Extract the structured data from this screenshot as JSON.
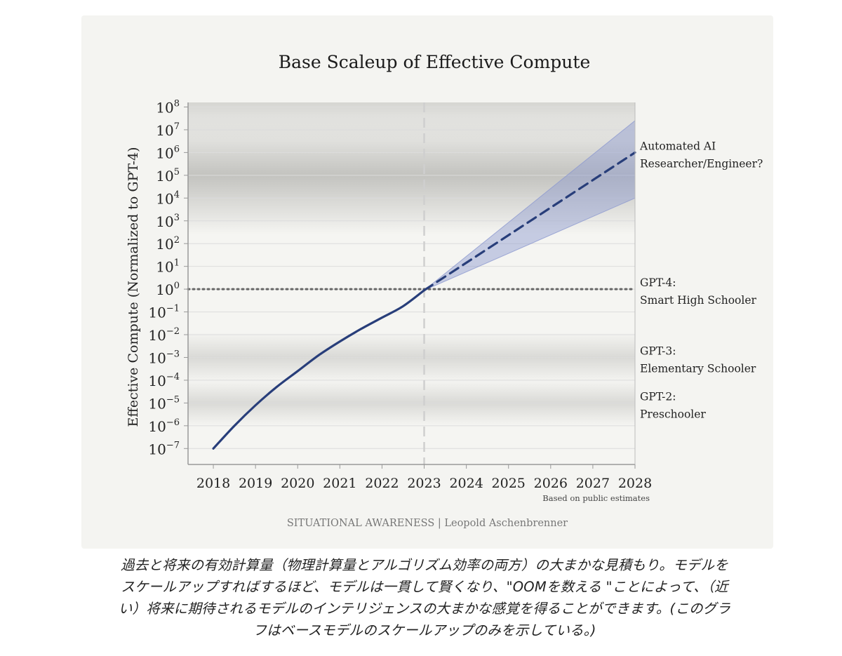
{
  "chart_data": {
    "type": "line",
    "title": "Base Scaleup of Effective Compute",
    "ylabel": "Effective Compute (Normalized to GPT-4)",
    "xlabel": "",
    "x_ticks": [
      "2018",
      "2019",
      "2020",
      "2021",
      "2022",
      "2023",
      "2024",
      "2025",
      "2026",
      "2027",
      "2028"
    ],
    "y_scale": "log10",
    "y_ticks": [
      {
        "base": "10",
        "exp": "8",
        "value": 8
      },
      {
        "base": "10",
        "exp": "7",
        "value": 7
      },
      {
        "base": "10",
        "exp": "6",
        "value": 6
      },
      {
        "base": "10",
        "exp": "5",
        "value": 5
      },
      {
        "base": "10",
        "exp": "4",
        "value": 4
      },
      {
        "base": "10",
        "exp": "3",
        "value": 3
      },
      {
        "base": "10",
        "exp": "2",
        "value": 2
      },
      {
        "base": "10",
        "exp": "1",
        "value": 1
      },
      {
        "base": "10",
        "exp": "0",
        "value": 0
      },
      {
        "base": "10",
        "exp": "−1",
        "value": -1
      },
      {
        "base": "10",
        "exp": "−2",
        "value": -2
      },
      {
        "base": "10",
        "exp": "−3",
        "value": -3
      },
      {
        "base": "10",
        "exp": "−4",
        "value": -4
      },
      {
        "base": "10",
        "exp": "−5",
        "value": -5
      },
      {
        "base": "10",
        "exp": "−6",
        "value": -6
      },
      {
        "base": "10",
        "exp": "−7",
        "value": -7
      }
    ],
    "xlim": [
      2017.4,
      2028
    ],
    "ylim_log10": [
      -7.7,
      8.2
    ],
    "series": [
      {
        "style": "solid",
        "x": [
          2018,
          2018.5,
          2019,
          2019.5,
          2020,
          2020.5,
          2021,
          2021.5,
          2022,
          2022.5,
          2023
        ],
        "log10_y": [
          -7.0,
          -6.0,
          -5.1,
          -4.3,
          -3.6,
          -2.9,
          -2.3,
          -1.75,
          -1.25,
          -0.75,
          -0.05
        ]
      },
      {
        "style": "dashed",
        "x": [
          2023,
          2028
        ],
        "log10_y": [
          -0.05,
          6.0
        ]
      }
    ],
    "band": {
      "x": [
        2023,
        2028
      ],
      "upper_log10": [
        -0.05,
        7.4
      ],
      "lower_log10": [
        -0.05,
        4.0
      ]
    },
    "reference_line": {
      "log10_y": 0,
      "style": "dotted"
    },
    "vertical_marker": {
      "x": 2023,
      "style": "dashed"
    },
    "levels": [
      {
        "label_line1": "Automated AI",
        "label_line2": "Researcher/Engineer?",
        "log10_y": 6.0
      },
      {
        "label_line1": "GPT-4:",
        "label_line2": "Smart High Schooler",
        "log10_y": 0
      },
      {
        "label_line1": "GPT-3:",
        "label_line2": "Elementary Schooler",
        "log10_y": -3.0
      },
      {
        "label_line1": "GPT-2:",
        "label_line2": "Preschooler",
        "log10_y": -5.0
      }
    ],
    "shaded_regions_log10": [
      {
        "center": 5.0,
        "half_width": 2.6,
        "strength": 0.55
      },
      {
        "center": -3.0,
        "half_width": 1.1,
        "strength": 0.3
      },
      {
        "center": -5.0,
        "half_width": 1.0,
        "strength": 0.3
      }
    ],
    "note": "Based on public estimates",
    "source": "SITUATIONAL AWARENESS | Leopold Aschenbrenner",
    "colors": {
      "line": "#283e7a",
      "band": "#8c98cf",
      "reference": "#666666",
      "marker": "#cfcfcf",
      "grid": "#dcdcdc",
      "shade": "#9a9a96"
    }
  },
  "caption": {
    "line1": "過去と将来の有効計算量（物理計算量とアルゴリズム効率の両方）の大まかな見積もり。モデルを",
    "line2": "スケールアップすればするほど、モデルは一貫して賢くなり、\"OOMを数える \"ことによって、（近",
    "line3": "い）将来に期待されるモデルのインテリジェンスの大まかな感覚を得ることができます。(このグラ",
    "line4": "フはベースモデルのスケールアップのみを示している。)"
  }
}
